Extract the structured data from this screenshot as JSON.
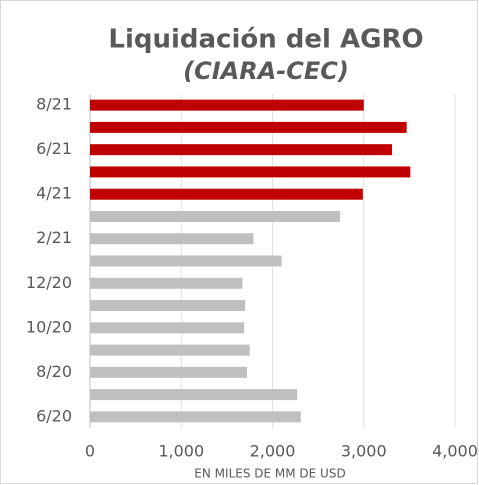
{
  "chart_data": {
    "type": "barh",
    "title": "Liquidación  del AGRO",
    "subtitle": "(CIARA-CEC)",
    "x_label": "EN MILES DE MM DE USD",
    "categories": [
      "8/21",
      null,
      "6/21",
      null,
      "4/21",
      null,
      "2/21",
      null,
      "12/20",
      null,
      "10/20",
      null,
      "8/20",
      null,
      "6/20"
    ],
    "values": [
      3000,
      3470,
      3310,
      3510,
      2990,
      2740,
      1790,
      2100,
      1670,
      1700,
      1690,
      1750,
      1720,
      2270,
      2310
    ],
    "colors": [
      "#c00000",
      "#c00000",
      "#c00000",
      "#c00000",
      "#c00000",
      "#bfbfbf",
      "#bfbfbf",
      "#bfbfbf",
      "#bfbfbf",
      "#bfbfbf",
      "#bfbfbf",
      "#bfbfbf",
      "#bfbfbf",
      "#bfbfbf",
      "#bfbfbf"
    ],
    "xlim": [
      0,
      4000
    ],
    "xticks": [
      0,
      {
        "value": 1000,
        "label": "1,000"
      },
      {
        "value": 2000,
        "label": "2,000"
      },
      {
        "value": 3000,
        "label": "3,000"
      },
      {
        "value": 4000,
        "label": "4,000"
      }
    ],
    "grid": true
  }
}
